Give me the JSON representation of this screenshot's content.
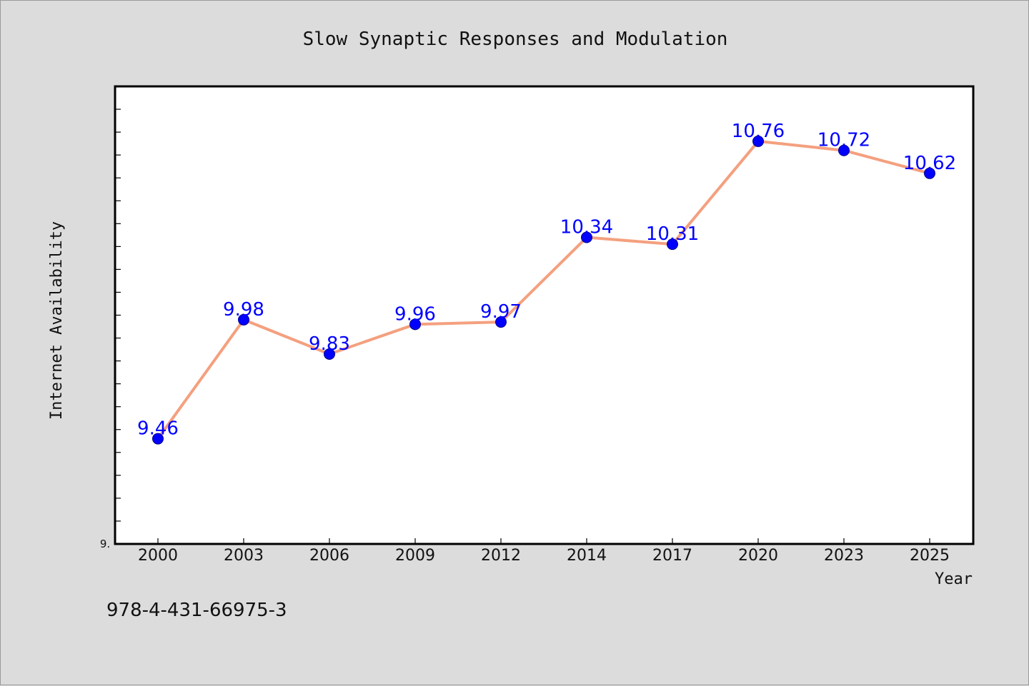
{
  "footer": {
    "code": "978-4-431-66975-3"
  },
  "chart_data": {
    "type": "line",
    "title": "Slow Synaptic Responses and Modulation",
    "xlabel": "Year",
    "ylabel": "Internet Availability",
    "categories": [
      "2000",
      "2003",
      "2006",
      "2009",
      "2012",
      "2014",
      "2017",
      "2020",
      "2023",
      "2025"
    ],
    "series": [
      {
        "values": [
          9.46,
          9.98,
          9.83,
          9.96,
          9.97,
          10.34,
          10.31,
          10.76,
          10.72,
          10.62
        ]
      }
    ],
    "data_labels": [
      "9.46",
      "9.98",
      "9.83",
      "9.96",
      "9.97",
      "10.34",
      "10.31",
      "10.76",
      "10.72",
      "10.62"
    ],
    "ylim": [
      9.0,
      11.0
    ],
    "y_tick_labels": [
      {
        "value": 9.0,
        "label": "9."
      }
    ],
    "grid": false,
    "legend": "none",
    "colors": {
      "line": "#f4a07f",
      "marker": "#0000ff",
      "marker_edge": "#00008b",
      "label": "#0000ff",
      "background": "#dcdcdc",
      "plot_background": "#ffffff"
    }
  }
}
